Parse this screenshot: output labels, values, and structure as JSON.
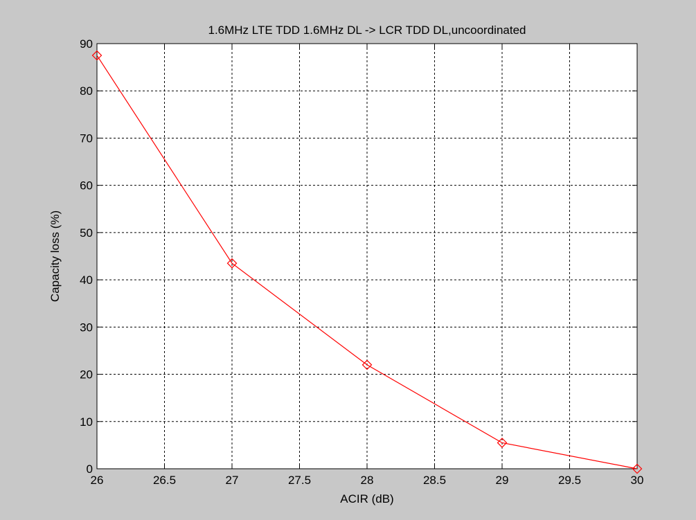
{
  "chart_data": {
    "type": "line",
    "title": "1.6MHz LTE TDD 1.6MHz DL -> LCR TDD DL,uncoordinated",
    "xlabel": "ACIR (dB)",
    "ylabel": "Capacity loss (%)",
    "xlim": [
      26,
      30
    ],
    "ylim": [
      0,
      90
    ],
    "xticks": [
      "26",
      "26.5",
      "27",
      "27.5",
      "28",
      "28.5",
      "29",
      "29.5",
      "30"
    ],
    "yticks": [
      "0",
      "10",
      "20",
      "30",
      "40",
      "50",
      "60",
      "70",
      "80",
      "90"
    ],
    "grid": true,
    "series": [
      {
        "x": [
          26,
          27,
          28,
          29,
          30
        ],
        "y": [
          87.5,
          43.5,
          22,
          5.5,
          0
        ],
        "color": "#ff0000",
        "marker": "diamond"
      }
    ]
  },
  "colors": {
    "figure_background": "#c8c8c8",
    "plot_background": "#ffffff",
    "grid": "#000000",
    "line": "#ff0000"
  }
}
